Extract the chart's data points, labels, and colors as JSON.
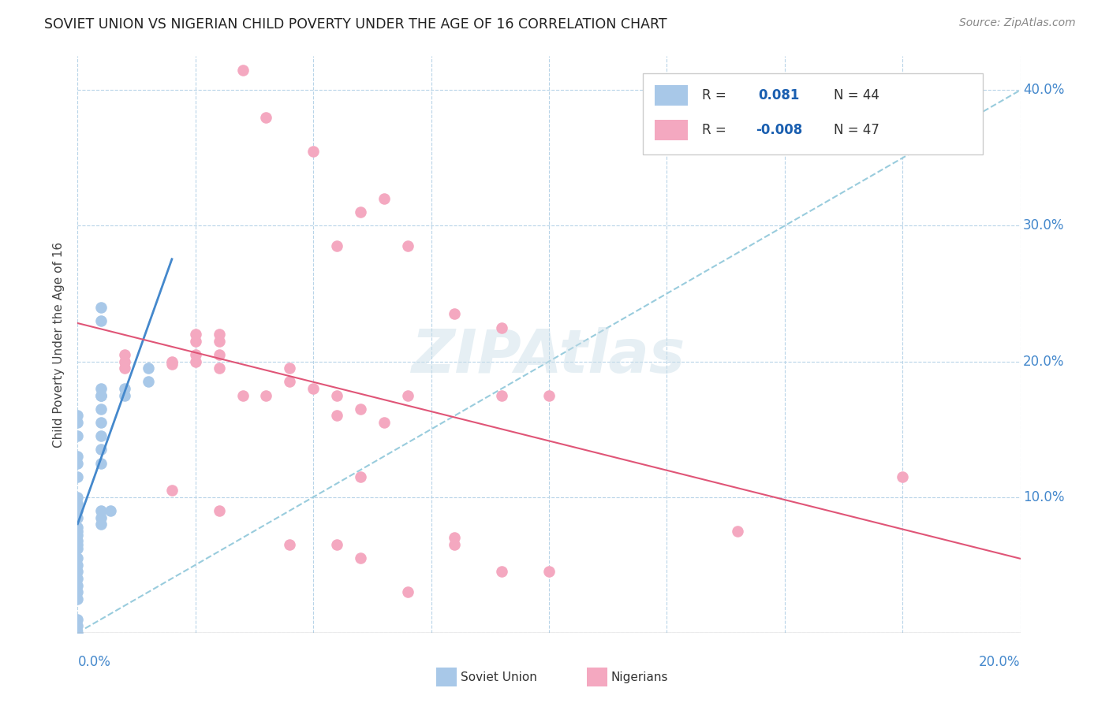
{
  "title": "SOVIET UNION VS NIGERIAN CHILD POVERTY UNDER THE AGE OF 16 CORRELATION CHART",
  "source": "Source: ZipAtlas.com",
  "ylabel": "Child Poverty Under the Age of 16",
  "y_ticks": [
    0.0,
    0.1,
    0.2,
    0.3,
    0.4
  ],
  "y_tick_labels": [
    "",
    "10.0%",
    "20.0%",
    "30.0%",
    "40.0%"
  ],
  "xmin": 0.0,
  "xmax": 0.2,
  "ymin": 0.0,
  "ymax": 0.425,
  "soviet_color": "#a8c8e8",
  "nigerian_color": "#f4a8c0",
  "soviet_trend_color": "#4488cc",
  "nigerian_trend_color": "#e05577",
  "dashed_trend_color": "#99ccdd",
  "watermark": "ZIPAtlas",
  "legend_r1_blue": "0.081",
  "legend_r1_n": "44",
  "legend_r2_blue": "-0.008",
  "legend_r2_n": "47",
  "soviet_points": [
    [
      0.0,
      0.155
    ],
    [
      0.0,
      0.16
    ],
    [
      0.0,
      0.145
    ],
    [
      0.0,
      0.13
    ],
    [
      0.0,
      0.125
    ],
    [
      0.0,
      0.115
    ],
    [
      0.0,
      0.1
    ],
    [
      0.0,
      0.095
    ],
    [
      0.0,
      0.09
    ],
    [
      0.0,
      0.085
    ],
    [
      0.0,
      0.078
    ],
    [
      0.0,
      0.075
    ],
    [
      0.0,
      0.072
    ],
    [
      0.0,
      0.068
    ],
    [
      0.0,
      0.065
    ],
    [
      0.0,
      0.062
    ],
    [
      0.0,
      0.055
    ],
    [
      0.0,
      0.05
    ],
    [
      0.0,
      0.045
    ],
    [
      0.0,
      0.04
    ],
    [
      0.005,
      0.24
    ],
    [
      0.005,
      0.23
    ],
    [
      0.005,
      0.18
    ],
    [
      0.005,
      0.175
    ],
    [
      0.005,
      0.165
    ],
    [
      0.005,
      0.155
    ],
    [
      0.005,
      0.145
    ],
    [
      0.005,
      0.135
    ],
    [
      0.005,
      0.125
    ],
    [
      0.005,
      0.09
    ],
    [
      0.005,
      0.085
    ],
    [
      0.005,
      0.08
    ],
    [
      0.01,
      0.18
    ],
    [
      0.01,
      0.175
    ],
    [
      0.015,
      0.195
    ],
    [
      0.015,
      0.185
    ],
    [
      0.0,
      0.035
    ],
    [
      0.0,
      0.03
    ],
    [
      0.0,
      0.025
    ],
    [
      0.0,
      0.01
    ],
    [
      0.005,
      0.175
    ],
    [
      0.007,
      0.09
    ],
    [
      0.0,
      0.005
    ],
    [
      0.0,
      0.0
    ]
  ],
  "nigerian_points": [
    [
      0.035,
      0.415
    ],
    [
      0.04,
      0.38
    ],
    [
      0.05,
      0.355
    ],
    [
      0.06,
      0.31
    ],
    [
      0.055,
      0.285
    ],
    [
      0.065,
      0.32
    ],
    [
      0.07,
      0.285
    ],
    [
      0.08,
      0.235
    ],
    [
      0.09,
      0.225
    ],
    [
      0.01,
      0.205
    ],
    [
      0.01,
      0.2
    ],
    [
      0.01,
      0.195
    ],
    [
      0.02,
      0.2
    ],
    [
      0.02,
      0.198
    ],
    [
      0.025,
      0.22
    ],
    [
      0.025,
      0.215
    ],
    [
      0.025,
      0.205
    ],
    [
      0.025,
      0.2
    ],
    [
      0.03,
      0.22
    ],
    [
      0.03,
      0.215
    ],
    [
      0.03,
      0.205
    ],
    [
      0.03,
      0.195
    ],
    [
      0.035,
      0.175
    ],
    [
      0.04,
      0.175
    ],
    [
      0.045,
      0.195
    ],
    [
      0.045,
      0.185
    ],
    [
      0.05,
      0.18
    ],
    [
      0.055,
      0.175
    ],
    [
      0.055,
      0.16
    ],
    [
      0.06,
      0.165
    ],
    [
      0.065,
      0.155
    ],
    [
      0.07,
      0.175
    ],
    [
      0.09,
      0.175
    ],
    [
      0.1,
      0.175
    ],
    [
      0.02,
      0.105
    ],
    [
      0.03,
      0.09
    ],
    [
      0.06,
      0.115
    ],
    [
      0.08,
      0.065
    ],
    [
      0.14,
      0.075
    ],
    [
      0.06,
      0.055
    ],
    [
      0.08,
      0.07
    ],
    [
      0.175,
      0.115
    ],
    [
      0.045,
      0.065
    ],
    [
      0.055,
      0.065
    ],
    [
      0.09,
      0.045
    ],
    [
      0.1,
      0.045
    ],
    [
      0.07,
      0.03
    ]
  ]
}
